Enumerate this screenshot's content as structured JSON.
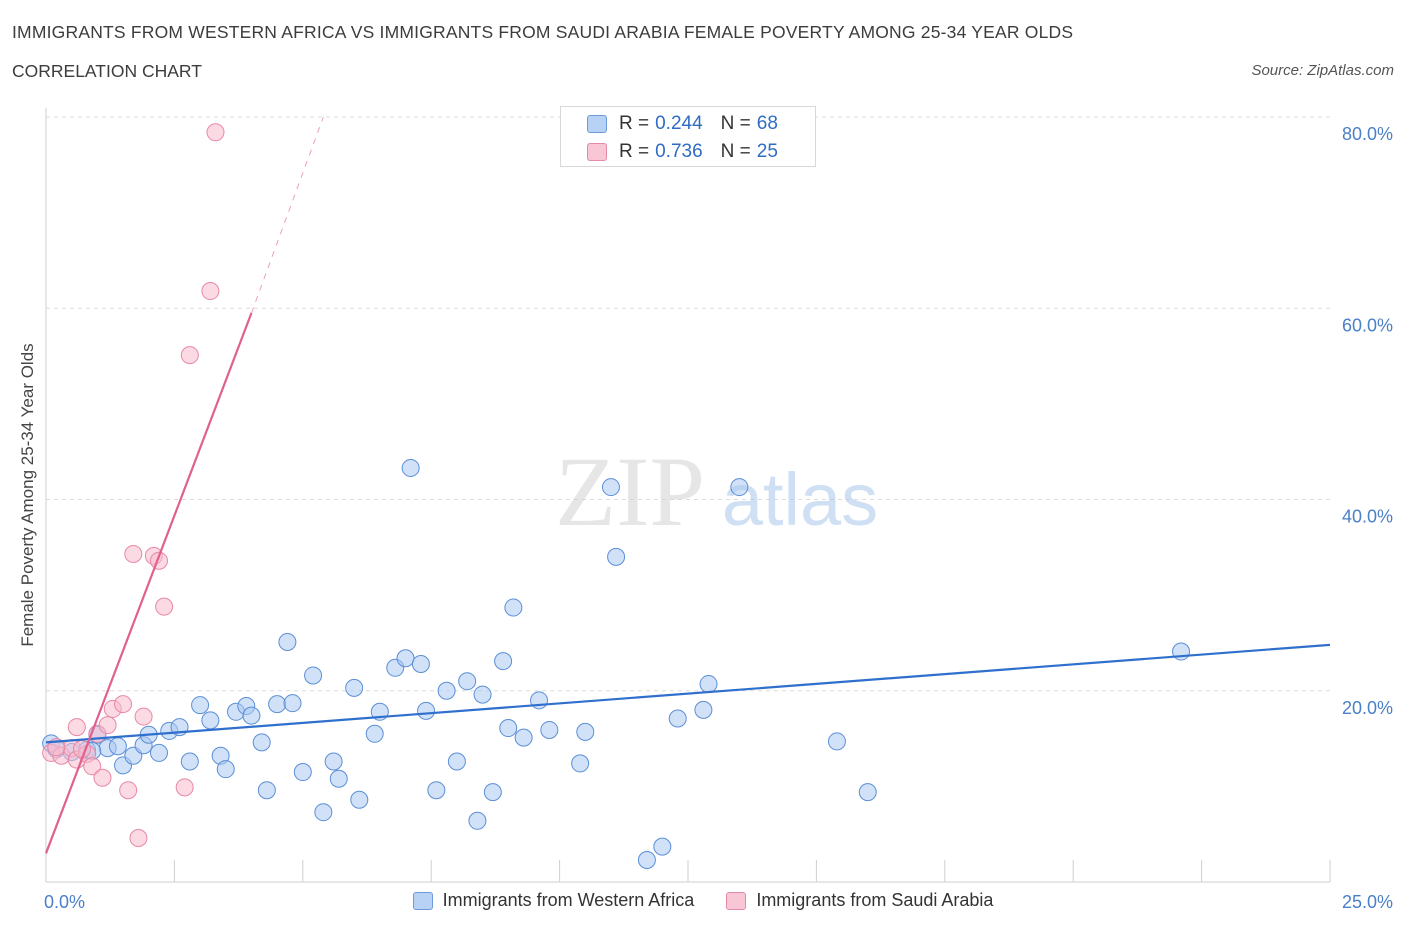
{
  "header": {
    "title": "IMMIGRANTS FROM WESTERN AFRICA VS IMMIGRANTS FROM SAUDI ARABIA FEMALE POVERTY AMONG 25-34 YEAR OLDS",
    "subtitle": "CORRELATION CHART",
    "source": "Source: ZipAtlas.com"
  },
  "watermark": {
    "zip": "ZIP",
    "atlas": "atlas"
  },
  "colors": {
    "blue_fill": "#a9c8f2",
    "blue_stroke": "#5b8fd6",
    "blue_line": "#2f6fcd",
    "pink_fill": "#f7bccd",
    "pink_stroke": "#e888a6",
    "pink_line": "#e0608e",
    "tick_text": "#4a7fc9"
  },
  "legend": {
    "series1": {
      "r_label": "R = ",
      "r_value": "0.244",
      "n_label": "N = ",
      "n_value": "68"
    },
    "series2": {
      "r_label": "R = ",
      "r_value": "0.736",
      "n_label": "N = ",
      "n_value": "25"
    }
  },
  "chart_data": {
    "type": "scatter",
    "title": "IMMIGRANTS FROM WESTERN AFRICA VS IMMIGRANTS FROM SAUDI ARABIA FEMALE POVERTY AMONG 25-34 YEAR OLDS",
    "subtitle": "CORRELATION CHART",
    "xlabel": "",
    "ylabel": "Female Poverty Among 25-34 Year Olds",
    "xlim": [
      0,
      25
    ],
    "ylim": [
      0,
      80
    ],
    "x_tick_labels": [
      "0.0%",
      "25.0%"
    ],
    "y_ticks": [
      20,
      40,
      60,
      80
    ],
    "y_tick_labels": [
      "20.0%",
      "40.0%",
      "60.0%",
      "80.0%"
    ],
    "grid": true,
    "legend_position": "bottom",
    "series": [
      {
        "name": "Immigrants from Western Africa",
        "color": "blue",
        "R": 0.244,
        "N": 68,
        "trendline": {
          "x": [
            0,
            25
          ],
          "y": [
            14.6,
            24.8
          ]
        },
        "points": [
          [
            0.1,
            14.5
          ],
          [
            0.2,
            13.9
          ],
          [
            0.5,
            13.6
          ],
          [
            0.8,
            13.8
          ],
          [
            1.0,
            15.4
          ],
          [
            1.2,
            14.0
          ],
          [
            1.4,
            14.2
          ],
          [
            1.5,
            12.2
          ],
          [
            1.7,
            13.2
          ],
          [
            1.9,
            14.3
          ],
          [
            2.0,
            15.4
          ],
          [
            2.2,
            13.5
          ],
          [
            2.4,
            15.8
          ],
          [
            2.6,
            16.2
          ],
          [
            2.8,
            12.6
          ],
          [
            3.0,
            18.5
          ],
          [
            3.2,
            16.9
          ],
          [
            3.4,
            13.2
          ],
          [
            3.5,
            11.8
          ],
          [
            3.7,
            17.8
          ],
          [
            3.9,
            18.4
          ],
          [
            4.0,
            17.4
          ],
          [
            4.2,
            14.6
          ],
          [
            4.3,
            9.6
          ],
          [
            4.5,
            18.6
          ],
          [
            4.7,
            25.1
          ],
          [
            4.8,
            18.7
          ],
          [
            5.0,
            11.5
          ],
          [
            5.2,
            21.6
          ],
          [
            5.4,
            7.3
          ],
          [
            5.6,
            12.6
          ],
          [
            5.7,
            10.8
          ],
          [
            6.0,
            20.3
          ],
          [
            6.1,
            8.6
          ],
          [
            6.4,
            15.5
          ],
          [
            6.5,
            17.8
          ],
          [
            6.8,
            22.4
          ],
          [
            7.0,
            23.4
          ],
          [
            7.1,
            43.3
          ],
          [
            7.3,
            22.8
          ],
          [
            7.4,
            17.9
          ],
          [
            7.6,
            9.6
          ],
          [
            7.8,
            20.0
          ],
          [
            8.0,
            12.6
          ],
          [
            8.2,
            21.0
          ],
          [
            8.4,
            6.4
          ],
          [
            8.5,
            19.6
          ],
          [
            8.7,
            9.4
          ],
          [
            8.9,
            23.1
          ],
          [
            9.0,
            16.1
          ],
          [
            9.1,
            28.7
          ],
          [
            9.3,
            15.1
          ],
          [
            9.6,
            19.0
          ],
          [
            9.8,
            15.9
          ],
          [
            10.4,
            12.4
          ],
          [
            10.5,
            15.7
          ],
          [
            11.0,
            41.3
          ],
          [
            11.1,
            34.0
          ],
          [
            11.7,
            2.3
          ],
          [
            12.0,
            3.7
          ],
          [
            12.3,
            17.1
          ],
          [
            12.8,
            18.0
          ],
          [
            12.9,
            20.7
          ],
          [
            13.5,
            41.3
          ],
          [
            15.4,
            14.7
          ],
          [
            16.0,
            9.4
          ],
          [
            22.1,
            24.1
          ],
          [
            0.9,
            13.7
          ]
        ]
      },
      {
        "name": "Immigrants from Saudi Arabia",
        "color": "pink",
        "R": 0.736,
        "N": 25,
        "trendline": {
          "x": [
            0,
            4.0
          ],
          "y": [
            3.0,
            59.5
          ]
        },
        "trendline_dashed": {
          "x": [
            4.0,
            5.4
          ],
          "y": [
            59.5,
            80.0
          ]
        },
        "points": [
          [
            0.1,
            13.5
          ],
          [
            0.3,
            13.2
          ],
          [
            0.5,
            14.0
          ],
          [
            0.6,
            12.8
          ],
          [
            0.6,
            16.2
          ],
          [
            0.8,
            13.4
          ],
          [
            0.9,
            12.1
          ],
          [
            1.0,
            15.5
          ],
          [
            1.1,
            10.9
          ],
          [
            1.2,
            16.4
          ],
          [
            1.3,
            18.1
          ],
          [
            1.5,
            18.6
          ],
          [
            1.6,
            9.6
          ],
          [
            1.7,
            34.3
          ],
          [
            1.8,
            4.6
          ],
          [
            1.9,
            17.3
          ],
          [
            2.1,
            34.1
          ],
          [
            2.2,
            33.6
          ],
          [
            2.3,
            28.8
          ],
          [
            2.7,
            9.9
          ],
          [
            2.8,
            55.1
          ],
          [
            3.2,
            61.8
          ],
          [
            3.3,
            78.4
          ],
          [
            0.2,
            14.1
          ],
          [
            0.7,
            13.9
          ]
        ]
      }
    ]
  },
  "bottom_legend": {
    "item1": "Immigrants from Western Africa",
    "item2": "Immigrants from Saudi Arabia"
  }
}
